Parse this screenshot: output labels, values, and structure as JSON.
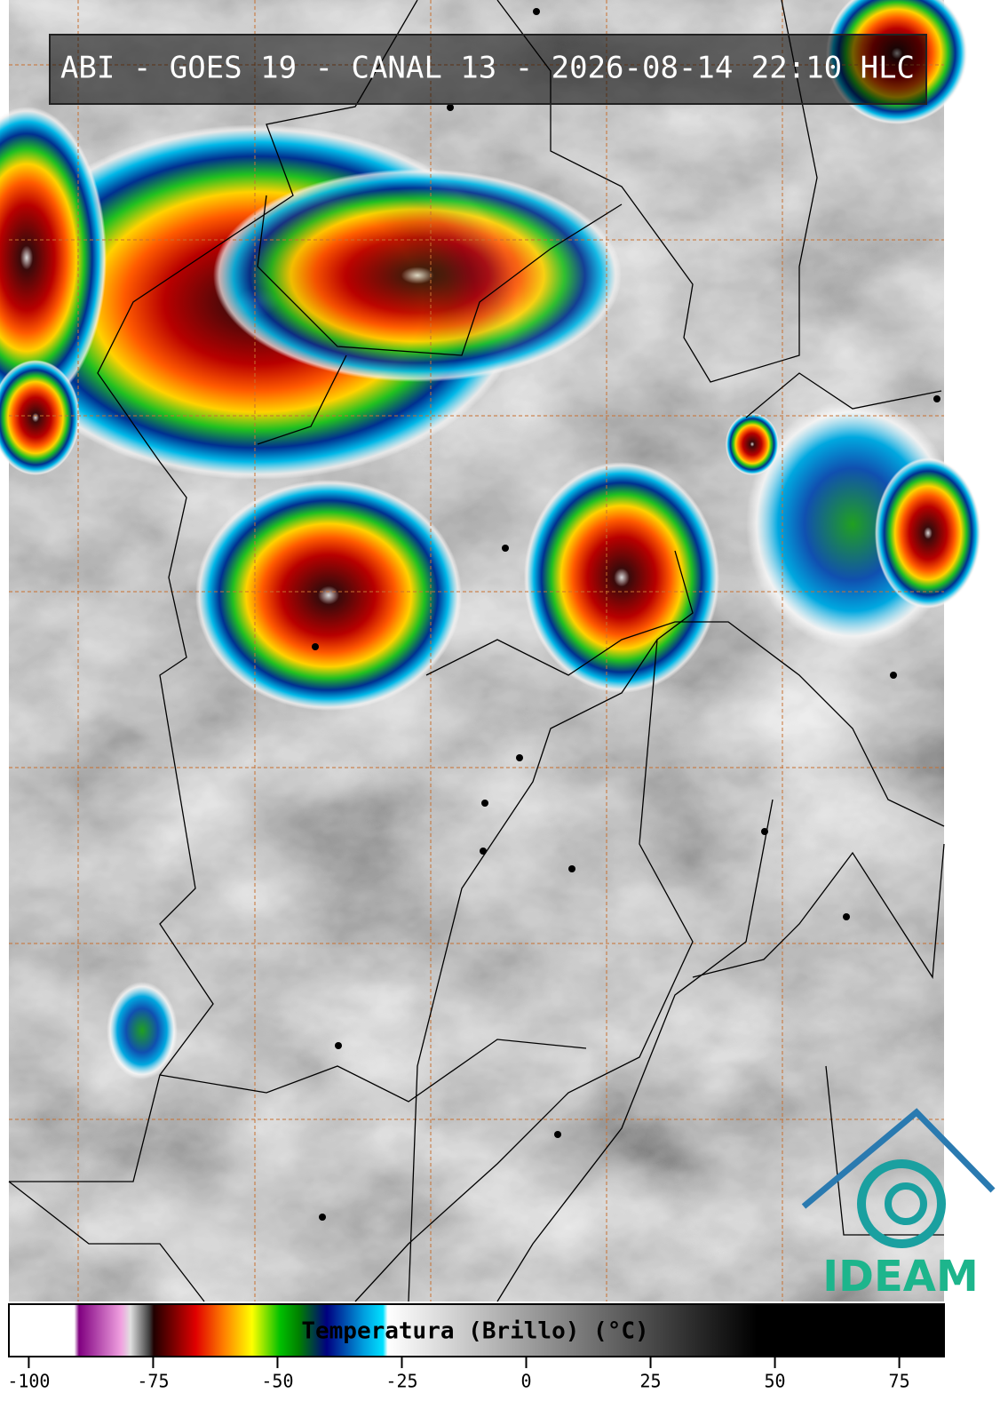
{
  "header": {
    "title": "ABI - GOES 19 - CANAL 13 - 2026-08-14 22:10 HLC"
  },
  "colorbar": {
    "label": "Temperatura (Brillo) (°C)",
    "lim": [
      -104,
      84
    ],
    "ticks": [
      -100,
      -75,
      -50,
      -25,
      0,
      25,
      50,
      75
    ]
  },
  "logo": {
    "text": "IDEAM"
  }
}
